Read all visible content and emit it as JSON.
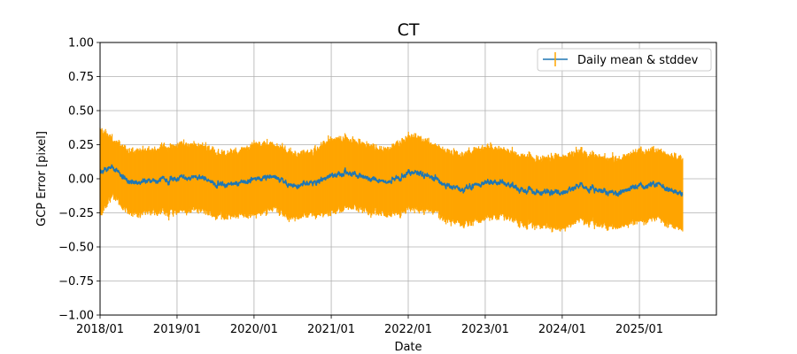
{
  "chart_data": {
    "type": "line",
    "title": "CT",
    "xlabel": "Date",
    "ylabel": "GCP Error [pixel]",
    "xlim": [
      "2018-01-01",
      "2026-01-01"
    ],
    "ylim": [
      -1.0,
      1.0
    ],
    "x_ticks": [
      "2018/01",
      "2019/01",
      "2020/01",
      "2021/01",
      "2022/01",
      "2023/01",
      "2024/01",
      "2025/01"
    ],
    "y_ticks": [
      "1.00",
      "0.75",
      "0.50",
      "0.25",
      "0.00",
      "−0.25",
      "−0.50",
      "−0.75",
      "−1.00"
    ],
    "grid": true,
    "legend": {
      "position": "top-right",
      "label": "Daily mean & stddev"
    },
    "colors": {
      "mean": "#1f77b4",
      "stddev": "#ffa500"
    },
    "series": [
      {
        "name": "Daily mean & stddev",
        "x": [
          "2018-01-01",
          "2018-03-01",
          "2018-06-01",
          "2018-09-01",
          "2019-01-01",
          "2019-04-01",
          "2019-07-01",
          "2019-10-01",
          "2020-01-01",
          "2020-04-01",
          "2020-07-01",
          "2020-10-01",
          "2021-01-01",
          "2021-04-01",
          "2021-07-01",
          "2021-10-01",
          "2022-01-01",
          "2022-04-01",
          "2022-07-01",
          "2022-10-01",
          "2023-01-01",
          "2023-04-01",
          "2023-07-01",
          "2023-10-01",
          "2024-01-01",
          "2024-04-01",
          "2024-07-01",
          "2024-10-01",
          "2025-01-01",
          "2025-04-01",
          "2025-07-01"
        ],
        "mean": [
          0.05,
          0.08,
          -0.03,
          -0.02,
          0.0,
          0.02,
          -0.03,
          -0.04,
          0.0,
          0.02,
          -0.05,
          -0.03,
          0.02,
          0.05,
          0.0,
          -0.02,
          0.05,
          0.03,
          -0.05,
          -0.08,
          -0.02,
          -0.03,
          -0.08,
          -0.1,
          -0.1,
          -0.04,
          -0.1,
          -0.1,
          -0.05,
          -0.04,
          -0.1
        ],
        "stddev": [
          0.3,
          0.2,
          0.22,
          0.22,
          0.24,
          0.23,
          0.23,
          0.22,
          0.25,
          0.23,
          0.23,
          0.22,
          0.26,
          0.24,
          0.23,
          0.23,
          0.26,
          0.24,
          0.24,
          0.25,
          0.25,
          0.23,
          0.24,
          0.24,
          0.26,
          0.24,
          0.24,
          0.24,
          0.25,
          0.24,
          0.25
        ]
      }
    ]
  }
}
